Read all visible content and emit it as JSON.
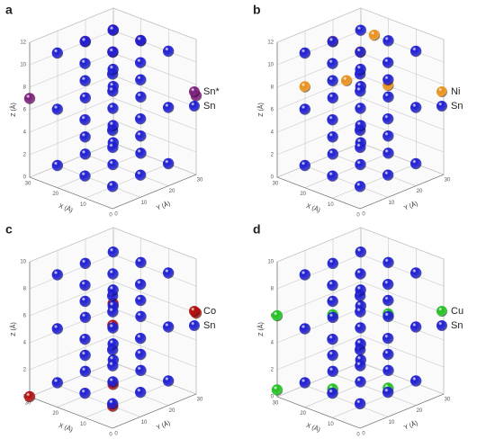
{
  "chart_data": [
    {
      "type": "scatter3d",
      "label": "a",
      "xlabel": "X (Å)",
      "ylabel": "Y (Å)",
      "zlabel": "Z (Å)",
      "xlim": [
        0,
        30
      ],
      "ylim": [
        0,
        30
      ],
      "zlim": [
        0,
        12
      ],
      "xticks": [
        0,
        10,
        20,
        30
      ],
      "yticks": [
        0,
        10,
        20,
        30
      ],
      "zticks": [
        0,
        2,
        4,
        6,
        8,
        10,
        12
      ],
      "series": [
        {
          "name": "Sn*",
          "color": "#7a1f7a",
          "x": [
            10,
            20,
            10,
            20,
            30,
            0
          ],
          "y": [
            10,
            10,
            20,
            20,
            0,
            30
          ],
          "z": [
            12,
            12,
            12,
            12,
            7,
            7
          ]
        },
        {
          "name": "Sn",
          "color": "#1f1fd0",
          "x": [
            5,
            15,
            25,
            5,
            15,
            25,
            5,
            15,
            25,
            5,
            15,
            25,
            5,
            15,
            25,
            5,
            15,
            25,
            5,
            15,
            25,
            5,
            15,
            25,
            5,
            15,
            25,
            10,
            20,
            10,
            20,
            10,
            20,
            10,
            20
          ],
          "y": [
            5,
            5,
            5,
            15,
            15,
            15,
            25,
            25,
            25,
            5,
            5,
            5,
            15,
            15,
            15,
            25,
            25,
            25,
            5,
            5,
            5,
            15,
            15,
            15,
            25,
            25,
            25,
            10,
            10,
            20,
            20,
            10,
            10,
            20,
            20
          ],
          "z": [
            1,
            1,
            1,
            1,
            1,
            1,
            1,
            1,
            1,
            6,
            6,
            6,
            6,
            6,
            6,
            6,
            6,
            6,
            11,
            11,
            11,
            11,
            11,
            11,
            11,
            11,
            11,
            3.5,
            3.5,
            3.5,
            3.5,
            8.5,
            8.5,
            8.5,
            8.5
          ]
        }
      ]
    },
    {
      "type": "scatter3d",
      "label": "b",
      "xlabel": "X (Å)",
      "ylabel": "Y (Å)",
      "zlabel": "Z (Å)",
      "xlim": [
        0,
        30
      ],
      "ylim": [
        0,
        30
      ],
      "zlim": [
        0,
        12
      ],
      "xticks": [
        0,
        10,
        20,
        30
      ],
      "yticks": [
        0,
        10,
        20,
        30
      ],
      "zticks": [
        0,
        2,
        4,
        6,
        8,
        10,
        12
      ],
      "series": [
        {
          "name": "Ni",
          "color": "#e8901a",
          "x": [
            10,
            20,
            15,
            20,
            10,
            25
          ],
          "y": [
            10,
            10,
            20,
            15,
            20,
            5
          ],
          "z": [
            12,
            12,
            12,
            8,
            8,
            8
          ]
        },
        {
          "name": "Sn",
          "color": "#1f1fd0",
          "x": [
            5,
            15,
            25,
            5,
            15,
            25,
            5,
            15,
            25,
            5,
            15,
            25,
            5,
            15,
            25,
            5,
            15,
            25,
            5,
            15,
            25,
            5,
            15,
            25,
            5,
            15,
            25,
            10,
            20,
            10,
            20,
            10,
            20,
            10,
            20
          ],
          "y": [
            5,
            5,
            5,
            15,
            15,
            15,
            25,
            25,
            25,
            5,
            5,
            5,
            15,
            15,
            15,
            25,
            25,
            25,
            5,
            5,
            5,
            15,
            15,
            15,
            25,
            25,
            25,
            10,
            10,
            20,
            20,
            10,
            10,
            20,
            20
          ],
          "z": [
            1,
            1,
            1,
            1,
            1,
            1,
            1,
            1,
            1,
            6,
            6,
            6,
            6,
            6,
            6,
            6,
            6,
            6,
            11,
            11,
            11,
            11,
            11,
            11,
            11,
            11,
            11,
            3.5,
            3.5,
            3.5,
            3.5,
            8.5,
            8.5,
            8.5,
            8.5
          ]
        }
      ]
    },
    {
      "type": "scatter3d",
      "label": "c",
      "xlabel": "X (Å)",
      "ylabel": "Y (Å)",
      "zlabel": "Z (Å)",
      "xlim": [
        0,
        30
      ],
      "ylim": [
        0,
        30
      ],
      "zlim": [
        0,
        10
      ],
      "xticks": [
        0,
        10,
        20,
        30
      ],
      "yticks": [
        0,
        10,
        20,
        30
      ],
      "zticks": [
        0,
        2,
        4,
        6,
        8,
        10
      ],
      "series": [
        {
          "name": "Co",
          "color": "#b01010",
          "x": [
            10,
            20,
            0,
            10,
            20,
            30
          ],
          "y": [
            10,
            20,
            30,
            10,
            20,
            0
          ],
          "z": [
            6,
            6,
            6,
            0,
            0,
            0
          ]
        },
        {
          "name": "Sn",
          "color": "#1f1fd0",
          "x": [
            5,
            15,
            25,
            5,
            15,
            25,
            5,
            15,
            25,
            5,
            15,
            25,
            5,
            15,
            25,
            5,
            15,
            25,
            5,
            15,
            25,
            5,
            15,
            25,
            5,
            15,
            25,
            10,
            20,
            10,
            20,
            10,
            20,
            10,
            20
          ],
          "y": [
            5,
            5,
            5,
            15,
            15,
            15,
            25,
            25,
            25,
            5,
            5,
            5,
            15,
            15,
            15,
            25,
            25,
            25,
            5,
            5,
            5,
            15,
            15,
            15,
            25,
            25,
            25,
            10,
            10,
            20,
            20,
            10,
            10,
            20,
            20
          ],
          "z": [
            1,
            1,
            1,
            1,
            1,
            1,
            1,
            1,
            1,
            5,
            5,
            5,
            5,
            5,
            5,
            5,
            5,
            5,
            9,
            9,
            9,
            9,
            9,
            9,
            9,
            9,
            9,
            3,
            3,
            3,
            3,
            7,
            7,
            7,
            7
          ]
        }
      ]
    },
    {
      "type": "scatter3d",
      "label": "d",
      "xlabel": "X (Å)",
      "ylabel": "Y (Å)",
      "zlabel": "Z (Å)",
      "xlim": [
        0,
        30
      ],
      "ylim": [
        0,
        30
      ],
      "zlim": [
        0,
        10
      ],
      "xticks": [
        0,
        10,
        20,
        30
      ],
      "yticks": [
        0,
        10,
        20,
        30
      ],
      "zticks": [
        0,
        2,
        4,
        6,
        8,
        10
      ],
      "series": [
        {
          "name": "Cu",
          "color": "#22c022",
          "x": [
            10,
            20,
            30,
            10,
            20,
            30
          ],
          "y": [
            20,
            10,
            0,
            20,
            10,
            0
          ],
          "z": [
            6,
            6,
            6,
            0.5,
            0.5,
            0.5
          ]
        },
        {
          "name": "Sn",
          "color": "#1f1fd0",
          "x": [
            5,
            15,
            25,
            5,
            15,
            25,
            5,
            15,
            25,
            5,
            15,
            25,
            5,
            15,
            25,
            5,
            15,
            25,
            5,
            15,
            25,
            5,
            15,
            25,
            5,
            15,
            25,
            10,
            20,
            10,
            20,
            10,
            20,
            10,
            20
          ],
          "y": [
            5,
            5,
            5,
            15,
            15,
            15,
            25,
            25,
            25,
            5,
            5,
            5,
            15,
            15,
            15,
            25,
            25,
            25,
            5,
            5,
            5,
            15,
            15,
            15,
            25,
            25,
            25,
            10,
            10,
            20,
            20,
            10,
            10,
            20,
            20
          ],
          "z": [
            1,
            1,
            1,
            1,
            1,
            1,
            1,
            1,
            1,
            5,
            5,
            5,
            5,
            5,
            5,
            5,
            5,
            5,
            9,
            9,
            9,
            9,
            9,
            9,
            9,
            9,
            9,
            3,
            3,
            3,
            3,
            7,
            7,
            7,
            7
          ]
        }
      ]
    }
  ]
}
